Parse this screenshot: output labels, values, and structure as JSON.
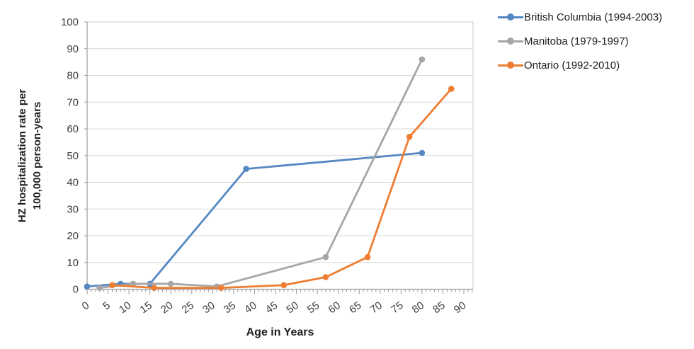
{
  "chart_data": {
    "type": "line",
    "title": "",
    "xlabel": "Age in Years",
    "ylabel": "HZ hospitalization rate per 100,000 person-years",
    "ylabel_lines": [
      "HZ hospitalization rate per",
      "100,000 person-years"
    ],
    "x_ticks": [
      0,
      5,
      10,
      15,
      20,
      25,
      30,
      35,
      40,
      45,
      50,
      55,
      60,
      65,
      70,
      75,
      80,
      85,
      90
    ],
    "y_ticks": [
      0,
      10,
      20,
      30,
      40,
      50,
      60,
      70,
      80,
      90,
      100
    ],
    "xlim": [
      0,
      92.2
    ],
    "ylim": [
      0,
      100
    ],
    "grid": "horizontal",
    "legend_position": "top-right",
    "series": [
      {
        "name": "British Columbia (1994-2003)",
        "color": "#5587C3",
        "points": [
          [
            0,
            1
          ],
          [
            8,
            2
          ],
          [
            15,
            2
          ],
          [
            38,
            45
          ],
          [
            80,
            51
          ]
        ]
      },
      {
        "name": "Manitoba (1979-1997)",
        "color": "#A6A6A6",
        "points": [
          [
            3,
            0.5
          ],
          [
            11,
            2
          ],
          [
            20,
            2
          ],
          [
            31,
            1
          ],
          [
            57,
            12
          ],
          [
            80,
            86
          ]
        ]
      },
      {
        "name": "Ontario (1992-2010)",
        "color": "#ED7D31",
        "points": [
          [
            6,
            1.5
          ],
          [
            16,
            0.5
          ],
          [
            32,
            0.5
          ],
          [
            47,
            1.5
          ],
          [
            57,
            4.5
          ],
          [
            67,
            12
          ],
          [
            77,
            57
          ],
          [
            87,
            75
          ]
        ]
      }
    ]
  },
  "colors": {
    "gridline": "#D9D9D9",
    "plot_border": "#C9C9C9",
    "axis_line": "#9A9A9A",
    "tick": "#9A9A9A",
    "tick_label": "#3D3D3D",
    "text": "#1F1F1F",
    "background": "#FFFFFF"
  }
}
